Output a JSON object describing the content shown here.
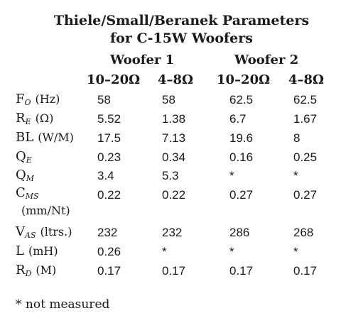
{
  "title": [
    "Thiele/Small/Beranek Parameters",
    "for C-15W Woofers"
  ],
  "table": {
    "groups": [
      "Woofer 1",
      "Woofer 2"
    ],
    "columns": [
      "10–20Ω",
      "4–8Ω",
      "10–20Ω",
      "4–8Ω"
    ],
    "rows": [
      {
        "symbol": "F",
        "sub": "O",
        "unit": "(Hz)",
        "cells": [
          "58",
          "58",
          "62.5",
          "62.5"
        ]
      },
      {
        "symbol": "R",
        "sub": "E",
        "unit": "(Ω)",
        "cells": [
          "5.52",
          "1.38",
          "6.7",
          "1.67"
        ]
      },
      {
        "symbol": "BL",
        "unit": "(W/M)",
        "cells": [
          "17.5",
          "7.13",
          "19.6",
          "8"
        ]
      },
      {
        "symbol": "Q",
        "sub": "E",
        "cells": [
          "0.23",
          "0.34",
          "0.16",
          "0.25"
        ]
      },
      {
        "symbol": "Q",
        "sub": "M",
        "cells": [
          "3.4",
          "5.3",
          "*",
          "*"
        ]
      },
      {
        "symbol": "C",
        "sub": "MS",
        "unit": "(mm/Nt)",
        "cells": [
          "0.22",
          "0.22",
          "0.27",
          "0.27"
        ]
      },
      {
        "symbol": "V",
        "sub": "AS",
        "unit": "(ltrs.)",
        "cells": [
          "232",
          "232",
          "286",
          "268"
        ]
      },
      {
        "symbol": "L",
        "unit": "(mH)",
        "cells": [
          "0.26",
          "*",
          "*",
          "*"
        ]
      },
      {
        "symbol": "R",
        "sub": "D",
        "unit": "(M)",
        "cells": [
          "0.17",
          "0.17",
          "0.17",
          "0.17"
        ]
      }
    ]
  },
  "footnote": "* not measured"
}
